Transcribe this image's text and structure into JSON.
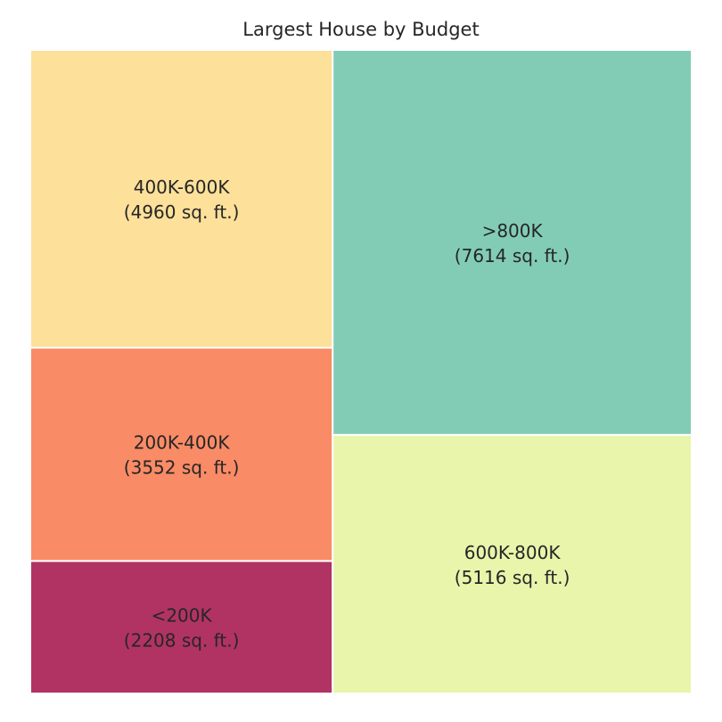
{
  "chart_data": {
    "type": "treemap",
    "title": "Largest House by Budget",
    "unit": "sq. ft.",
    "categories": [
      "<200K",
      "200K-400K",
      "400K-600K",
      "600K-800K",
      ">800K"
    ],
    "values": [
      2208,
      3552,
      4960,
      5116,
      7614
    ],
    "colors": [
      "#b13363",
      "#f98b66",
      "#fde09a",
      "#e8f5ab",
      "#82ccb6"
    ],
    "labels": [
      {
        "category": "<200K",
        "value_text": "(2208 sq. ft.)"
      },
      {
        "category": "200K-400K",
        "value_text": "(3552 sq. ft.)"
      },
      {
        "category": "400K-600K",
        "value_text": "(4960 sq. ft.)"
      },
      {
        "category": "600K-800K",
        "value_text": "(5116 sq. ft.)"
      },
      {
        "category": ">800K",
        "value_text": "(7614 sq. ft.)"
      }
    ],
    "grid": false,
    "axes_visible": false
  }
}
